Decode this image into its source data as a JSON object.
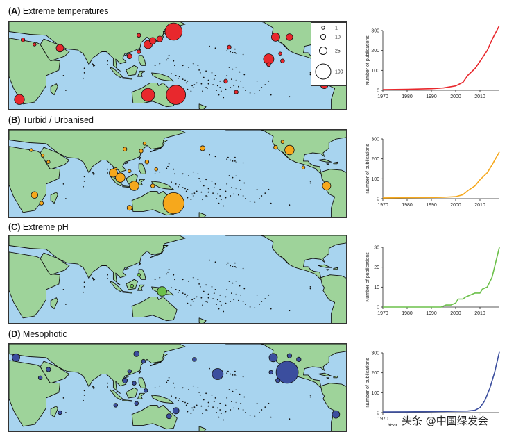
{
  "legend": {
    "items": [
      {
        "label": "1",
        "value": 1
      },
      {
        "label": "10",
        "value": 10
      },
      {
        "label": "25",
        "value": 25
      },
      {
        "label": "100",
        "value": 100
      }
    ]
  },
  "watermark": "头条 @中国绿发会",
  "colors": {
    "ocean": "#a8d4ef",
    "land": "#9ed39a",
    "red": "#e8282d",
    "orange": "#f6a81c",
    "green": "#6cc04a",
    "blue": "#3b4e9e"
  },
  "panels": [
    {
      "letter": "(A)",
      "name": "Extreme temperatures",
      "color": "#e8282d",
      "sites": [
        {
          "lon": 20,
          "lat": 35,
          "n": 3
        },
        {
          "lon": 30,
          "lat": 30,
          "n": 2
        },
        {
          "lon": 52,
          "lat": 26,
          "n": 12
        },
        {
          "lon": 17,
          "lat": -30,
          "n": 20
        },
        {
          "lon": 128,
          "lat": 30,
          "n": 14
        },
        {
          "lon": 132,
          "lat": 34,
          "n": 9
        },
        {
          "lon": 138,
          "lat": 36,
          "n": 7
        },
        {
          "lon": 120,
          "lat": 40,
          "n": 3
        },
        {
          "lon": 150,
          "lat": 44,
          "n": 60
        },
        {
          "lon": 112,
          "lat": 17,
          "n": 5
        },
        {
          "lon": 120,
          "lat": 22,
          "n": 3
        },
        {
          "lon": 128,
          "lat": -25,
          "n": 35
        },
        {
          "lon": 152,
          "lat": -25,
          "n": 75
        },
        {
          "lon": 195,
          "lat": -10,
          "n": 3
        },
        {
          "lon": 204,
          "lat": -22,
          "n": 3
        },
        {
          "lon": 198,
          "lat": 27,
          "n": 3
        },
        {
          "lon": 238,
          "lat": 38,
          "n": 14
        },
        {
          "lon": 250,
          "lat": 38,
          "n": 9
        },
        {
          "lon": 232,
          "lat": 14,
          "n": 22
        },
        {
          "lon": 242,
          "lat": 20,
          "n": 2
        },
        {
          "lon": 244,
          "lat": 12,
          "n": 3
        },
        {
          "lon": 232,
          "lat": 8,
          "n": 3
        },
        {
          "lon": 280,
          "lat": -14,
          "n": 12
        }
      ],
      "chart": {
        "type": "line",
        "x": [
          1970,
          1980,
          1990,
          1995,
          2000,
          2003,
          2005,
          2008,
          2010,
          2013,
          2015,
          2018
        ],
        "values": [
          3,
          5,
          8,
          12,
          22,
          40,
          75,
          110,
          145,
          200,
          255,
          325
        ],
        "xlabel": "",
        "ylabel": "Number of publications",
        "xlim": [
          1970,
          2018
        ],
        "ylim": [
          0,
          300
        ],
        "yticks": [
          0,
          100,
          200,
          300
        ],
        "xticks": [
          1970,
          1980,
          1990,
          2000,
          2010
        ]
      }
    },
    {
      "letter": "(B)",
      "name": "Turbid / Urbanised",
      "color": "#f6a81c",
      "sites": [
        {
          "lon": 27,
          "lat": 33,
          "n": 2
        },
        {
          "lon": 37,
          "lat": 27,
          "n": 2
        },
        {
          "lon": 30,
          "lat": -16,
          "n": 9
        },
        {
          "lon": 36,
          "lat": -25,
          "n": 3
        },
        {
          "lon": 42,
          "lat": 20,
          "n": 2
        },
        {
          "lon": 108,
          "lat": 34,
          "n": 3
        },
        {
          "lon": 122,
          "lat": 32,
          "n": 3
        },
        {
          "lon": 125,
          "lat": 40,
          "n": 2
        },
        {
          "lon": 127,
          "lat": 20,
          "n": 3
        },
        {
          "lon": 100,
          "lat": 12,
          "n": 2
        },
        {
          "lon": 104,
          "lat": 3,
          "n": 18
        },
        {
          "lon": 112,
          "lat": 10,
          "n": 2
        },
        {
          "lon": 98,
          "lat": 8,
          "n": 14
        },
        {
          "lon": 116,
          "lat": -6,
          "n": 18
        },
        {
          "lon": 132,
          "lat": -6,
          "n": 3
        },
        {
          "lon": 112,
          "lat": -30,
          "n": 5
        },
        {
          "lon": 150,
          "lat": -25,
          "n": 90
        },
        {
          "lon": 135,
          "lat": 12,
          "n": 2
        },
        {
          "lon": 175,
          "lat": 35,
          "n": 5
        },
        {
          "lon": 250,
          "lat": 33,
          "n": 18
        },
        {
          "lon": 244,
          "lat": 42,
          "n": 2
        },
        {
          "lon": 238,
          "lat": 36,
          "n": 3
        },
        {
          "lon": 282,
          "lat": -6,
          "n": 14
        },
        {
          "lon": 262,
          "lat": 14,
          "n": 2
        }
      ],
      "chart": {
        "type": "line",
        "x": [
          1970,
          1980,
          1990,
          1995,
          2000,
          2003,
          2005,
          2008,
          2010,
          2013,
          2015,
          2018
        ],
        "values": [
          4,
          5,
          6,
          7,
          10,
          20,
          40,
          65,
          95,
          130,
          170,
          235
        ],
        "xlabel": "",
        "ylabel": "Number of publications",
        "xlim": [
          1970,
          2018
        ],
        "ylim": [
          0,
          300
        ],
        "yticks": [
          0,
          100,
          200,
          300
        ],
        "xticks": [
          1970,
          1980,
          1990,
          2000,
          2010
        ]
      }
    },
    {
      "letter": "(C)",
      "name": "Extreme pH",
      "color": "#6cc04a",
      "sites": [
        {
          "lon": 120,
          "lat": 12,
          "n": 2
        },
        {
          "lon": 114,
          "lat": 0,
          "n": 2
        },
        {
          "lon": 140,
          "lat": -6,
          "n": 18
        }
      ],
      "chart": {
        "type": "line",
        "x": [
          1970,
          1994,
          1996,
          1998,
          2000,
          2001,
          2003,
          2004,
          2006,
          2008,
          2010,
          2011,
          2013,
          2015,
          2018
        ],
        "values": [
          0,
          0,
          1,
          1,
          2,
          4,
          4,
          5,
          6,
          7,
          7,
          9,
          10,
          15,
          30
        ],
        "xlabel": "",
        "ylabel": "Number of publications",
        "xlim": [
          1970,
          2018
        ],
        "ylim": [
          0,
          30
        ],
        "yticks": [
          0,
          10,
          20,
          30
        ],
        "xticks": [
          1970,
          1980,
          1990,
          2000,
          2010
        ]
      }
    },
    {
      "letter": "(D)",
      "name": "Mesophotic",
      "color": "#3b4e9e",
      "sites": [
        {
          "lon": 14,
          "lat": 40,
          "n": 12
        },
        {
          "lon": 42,
          "lat": 27,
          "n": 4
        },
        {
          "lon": 35,
          "lat": 18,
          "n": 3
        },
        {
          "lon": 52,
          "lat": -20,
          "n": 3
        },
        {
          "lon": 118,
          "lat": 44,
          "n": 6
        },
        {
          "lon": 124,
          "lat": 36,
          "n": 3
        },
        {
          "lon": 112,
          "lat": 25,
          "n": 3
        },
        {
          "lon": 108,
          "lat": 15,
          "n": 5
        },
        {
          "lon": 116,
          "lat": 12,
          "n": 3
        },
        {
          "lon": 126,
          "lat": 4,
          "n": 3
        },
        {
          "lon": 100,
          "lat": -12,
          "n": 3
        },
        {
          "lon": 118,
          "lat": -10,
          "n": 3
        },
        {
          "lon": 152,
          "lat": -18,
          "n": 8
        },
        {
          "lon": 146,
          "lat": -24,
          "n": 5
        },
        {
          "lon": 168,
          "lat": 38,
          "n": 3
        },
        {
          "lon": 188,
          "lat": 22,
          "n": 25
        },
        {
          "lon": 236,
          "lat": 40,
          "n": 14
        },
        {
          "lon": 250,
          "lat": 42,
          "n": 4
        },
        {
          "lon": 258,
          "lat": 38,
          "n": 4
        },
        {
          "lon": 248,
          "lat": 24,
          "n": 100
        },
        {
          "lon": 240,
          "lat": 15,
          "n": 4
        },
        {
          "lon": 234,
          "lat": 24,
          "n": 3
        },
        {
          "lon": 290,
          "lat": -22,
          "n": 12
        }
      ],
      "chart": {
        "type": "line",
        "x": [
          1970,
          1980,
          1990,
          1995,
          2000,
          2005,
          2008,
          2010,
          2012,
          2014,
          2016,
          2018
        ],
        "values": [
          3,
          4,
          5,
          6,
          7,
          8,
          12,
          25,
          60,
          120,
          200,
          305
        ],
        "xlabel": "Year",
        "ylabel": "Number of publications",
        "xlim": [
          1970,
          2018
        ],
        "ylim": [
          0,
          300
        ],
        "yticks": [
          0,
          100,
          200,
          300
        ],
        "xticks": [
          1970,
          1980,
          1990,
          2000,
          2010
        ]
      }
    }
  ]
}
